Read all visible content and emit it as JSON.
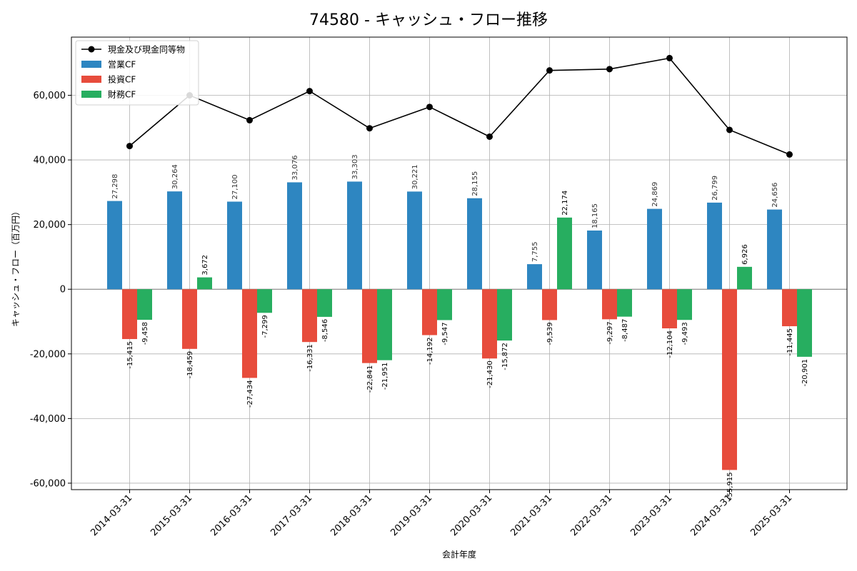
{
  "chart_data": {
    "type": "bar",
    "title": "74580 - キャッシュ・フロー推移",
    "xlabel": "会計年度",
    "ylabel": "キャッシュ・フロー（百万円）",
    "ylim": [
      -62000,
      78000
    ],
    "yticks": [
      -60000,
      -40000,
      -20000,
      0,
      20000,
      40000,
      60000
    ],
    "ytick_labels": [
      "-60,000",
      "-40,000",
      "-20,000",
      "0",
      "20,000",
      "40,000",
      "60,000"
    ],
    "grid": true,
    "legend_position": "top-left",
    "categories": [
      "2014-03-31",
      "2015-03-31",
      "2016-03-31",
      "2017-03-31",
      "2018-03-31",
      "2019-03-31",
      "2020-03-31",
      "2021-03-31",
      "2022-03-31",
      "2023-03-31",
      "2024-03-31",
      "2025-03-31"
    ],
    "series": [
      {
        "name": "営業CF",
        "type": "bar",
        "color": "#2e86c1",
        "values": [
          27298,
          30264,
          27100,
          33076,
          33303,
          30221,
          28155,
          7755,
          18165,
          24869,
          26799,
          24656
        ],
        "labels": [
          "27,298",
          "30,264",
          "27,100",
          "33,076",
          "33,303",
          "30,221",
          "28,155",
          "7,755",
          "18,165",
          "24,869",
          "26,799",
          "24,656"
        ]
      },
      {
        "name": "投資CF",
        "type": "bar",
        "color": "#e74c3c",
        "values": [
          -15415,
          -18459,
          -27434,
          -16331,
          -22841,
          -14192,
          -21430,
          -9539,
          -9297,
          -12104,
          -55915,
          -11445
        ],
        "labels": [
          "-15,415",
          "-18,459",
          "-27,434",
          "-16,331",
          "-22,841",
          "-14,192",
          "-21,430",
          "-9,539",
          "-9,297",
          "-12,104",
          "-55,915",
          "-11,445"
        ]
      },
      {
        "name": "財務CF",
        "type": "bar",
        "color": "#27ae60",
        "values": [
          -9458,
          3672,
          -7299,
          -8546,
          -21951,
          -9547,
          -15872,
          22174,
          -8487,
          -9493,
          6926,
          -20901
        ],
        "labels": [
          "-9,458",
          "3,672",
          "-7,299",
          "-8,546",
          "-21,951",
          "-9,547",
          "-15,872",
          "22,174",
          "-8,487",
          "-9,493",
          "6,926",
          "-20,901"
        ]
      },
      {
        "name": "現金及び現金同等物",
        "type": "line",
        "color": "#000000",
        "values": [
          44300,
          60000,
          52300,
          61300,
          49800,
          56400,
          47200,
          67700,
          68100,
          71500,
          49300,
          41700
        ]
      }
    ]
  }
}
